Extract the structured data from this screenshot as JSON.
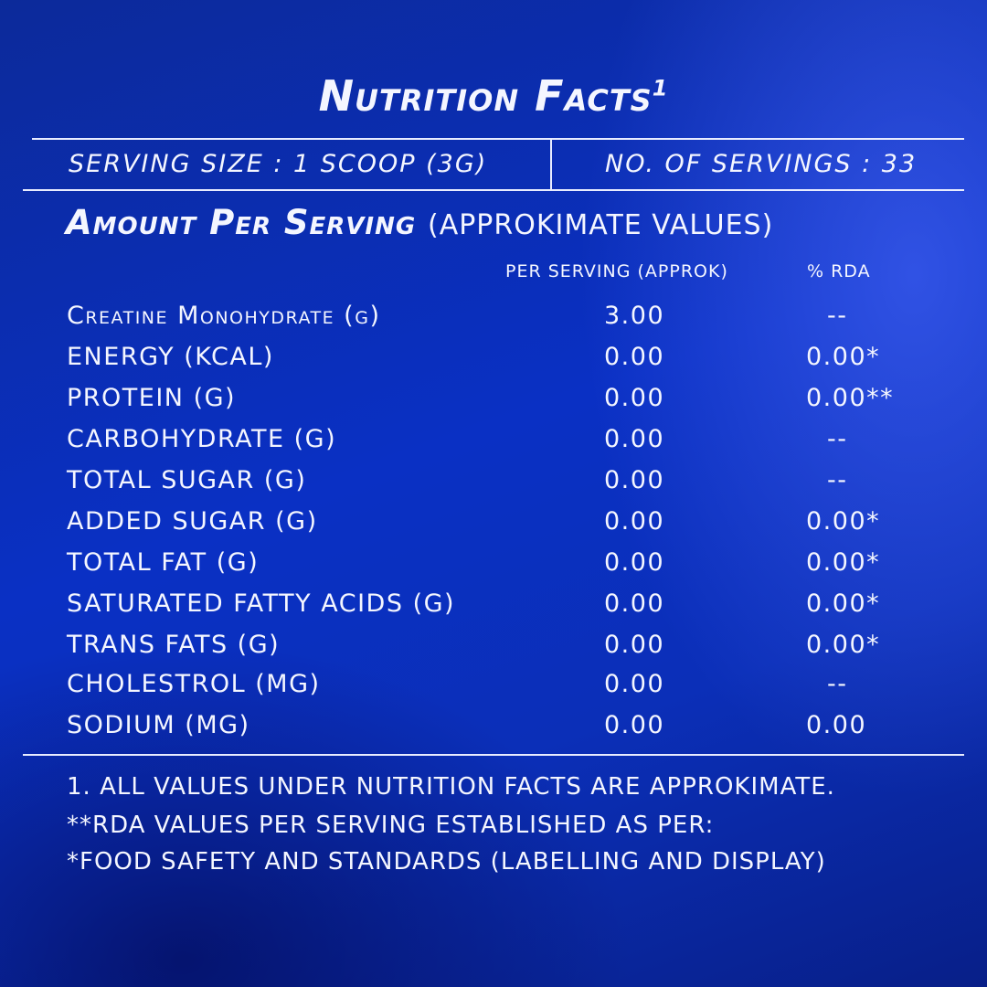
{
  "title": "Nutrition Facts",
  "title_sup": "1",
  "serving_size": "SERVING SIZE : 1 SCOOP (3G)",
  "num_servings": "NO. OF SERVINGS : 33",
  "amount_heading": "Amount Per Serving",
  "amount_sub": "(APPROKIMATE VALUES)",
  "columns": {
    "per_serving": "PER SERVING (APPROK)",
    "rda": "% RDA"
  },
  "rows": [
    {
      "name": "Creatine Monohydrate (g)",
      "value": "3.00",
      "rda": "--"
    },
    {
      "name": "ENERGY (KCAL)",
      "value": "0.00",
      "rda": "0.00*"
    },
    {
      "name": "PROTEIN (G)",
      "value": "0.00",
      "rda": "0.00**"
    },
    {
      "name": "CARBOHYDRATE (G)",
      "value": "0.00",
      "rda": "--"
    },
    {
      "name": "TOTAL SUGAR (G)",
      "value": "0.00",
      "rda": "--"
    },
    {
      "name": "ADDED SUGAR (G)",
      "value": "0.00",
      "rda": "0.00*"
    },
    {
      "name": "TOTAL FAT (G)",
      "value": "0.00",
      "rda": "0.00*"
    },
    {
      "name": "SATURATED FATTY ACIDS (G)",
      "value": "0.00",
      "rda": "0.00*"
    },
    {
      "name": "TRANS FATS (G)",
      "value": "0.00",
      "rda": "0.00*"
    },
    {
      "name": "CHOLESTROL (MG)",
      "value": "0.00",
      "rda": "--"
    },
    {
      "name": "SODIUM (MG)",
      "value": "0.00",
      "rda": "0.00"
    }
  ],
  "footnotes": [
    "1. ALL VALUES UNDER NUTRITION FACTS ARE APPROKIMATE.",
    "**RDA VALUES PER SERVING ESTABLISHED AS PER:",
    "*FOOD SAFETY AND STANDARDS (LABELLING AND DISPLAY)"
  ]
}
